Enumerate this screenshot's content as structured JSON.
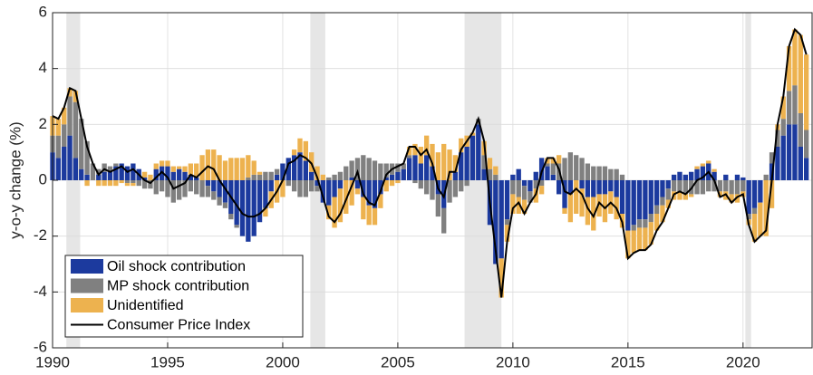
{
  "chart_data": {
    "type": "bar",
    "stacked": true,
    "ylabel": "y-o-y change (%)",
    "xlim": [
      1990,
      2023
    ],
    "xticks": [
      1990,
      1995,
      2000,
      2005,
      2010,
      2015,
      2020
    ],
    "ylim": [
      -6,
      6
    ],
    "yticks": [
      -6,
      -4,
      -2,
      0,
      2,
      4,
      6
    ],
    "grid": true,
    "legend": "lower left",
    "shaded_periods": [
      [
        1990.6,
        1991.2
      ],
      [
        2001.2,
        2001.85
      ],
      [
        2007.9,
        2009.5
      ],
      [
        2020.1,
        2020.35
      ]
    ],
    "shade_color": "#e6e6e6",
    "x": [
      1990,
      1990.25,
      1990.5,
      1990.75,
      1991,
      1991.25,
      1991.5,
      1991.75,
      1992,
      1992.25,
      1992.5,
      1992.75,
      1993,
      1993.25,
      1993.5,
      1993.75,
      1994,
      1994.25,
      1994.5,
      1994.75,
      1995,
      1995.25,
      1995.5,
      1995.75,
      1996,
      1996.25,
      1996.5,
      1996.75,
      1997,
      1997.25,
      1997.5,
      1997.75,
      1998,
      1998.25,
      1998.5,
      1998.75,
      1999,
      1999.25,
      1999.5,
      1999.75,
      2000,
      2000.25,
      2000.5,
      2000.75,
      2001,
      2001.25,
      2001.5,
      2001.75,
      2002,
      2002.25,
      2002.5,
      2002.75,
      2003,
      2003.25,
      2003.5,
      2003.75,
      2004,
      2004.25,
      2004.5,
      2004.75,
      2005,
      2005.25,
      2005.5,
      2005.75,
      2006,
      2006.25,
      2006.5,
      2006.75,
      2007,
      2007.25,
      2007.5,
      2007.75,
      2008,
      2008.25,
      2008.5,
      2008.75,
      2009,
      2009.25,
      2009.5,
      2009.75,
      2010,
      2010.25,
      2010.5,
      2010.75,
      2011,
      2011.25,
      2011.5,
      2011.75,
      2012,
      2012.25,
      2012.5,
      2012.75,
      2013,
      2013.25,
      2013.5,
      2013.75,
      2014,
      2014.25,
      2014.5,
      2014.75,
      2015,
      2015.25,
      2015.5,
      2015.75,
      2016,
      2016.25,
      2016.5,
      2016.75,
      2017,
      2017.25,
      2017.5,
      2017.75,
      2018,
      2018.25,
      2018.5,
      2018.75,
      2019,
      2019.25,
      2019.5,
      2019.75,
      2020,
      2020.25,
      2020.5,
      2020.75,
      2021,
      2021.25,
      2021.5,
      2021.75,
      2022,
      2022.25,
      2022.5,
      2022.75
    ],
    "series": [
      {
        "name": "Oil shock contribution",
        "color": "#1c3a9e",
        "type": "bar",
        "values": [
          1.0,
          0.8,
          1.2,
          1.6,
          0.8,
          0.4,
          0.2,
          0.0,
          0.2,
          0.3,
          0.3,
          0.5,
          0.6,
          0.5,
          0.6,
          0.4,
          0.1,
          0.0,
          0.4,
          0.5,
          0.5,
          0.3,
          0.4,
          0.3,
          0.2,
          0.1,
          0.0,
          -0.2,
          -0.4,
          -0.6,
          -0.8,
          -1.2,
          -1.6,
          -2.0,
          -2.2,
          -2.0,
          -1.5,
          -1.0,
          -0.4,
          0.2,
          0.6,
          0.8,
          0.9,
          1.0,
          0.7,
          0.3,
          -0.2,
          -0.8,
          -0.9,
          -0.6,
          -0.3,
          0.0,
          0.1,
          -0.3,
          -0.6,
          -0.9,
          -1.0,
          -0.5,
          0.1,
          0.2,
          0.3,
          0.4,
          0.8,
          0.9,
          0.6,
          0.9,
          0.5,
          -0.5,
          -1.0,
          0.0,
          0.3,
          1.0,
          1.2,
          1.6,
          2.0,
          0.4,
          -1.6,
          -3.0,
          -2.8,
          -1.4,
          0.2,
          0.4,
          -0.2,
          -0.4,
          0.3,
          0.8,
          0.5,
          0.2,
          -0.5,
          -1.0,
          -0.5,
          0.0,
          -0.3,
          -0.6,
          -0.6,
          -0.5,
          -0.5,
          -0.4,
          -0.6,
          -1.2,
          -1.8,
          -1.6,
          -1.4,
          -1.4,
          -1.2,
          -0.9,
          -0.6,
          -0.3,
          0.2,
          0.3,
          0.2,
          0.3,
          0.4,
          0.5,
          0.6,
          0.3,
          0.0,
          0.2,
          0.0,
          0.2,
          0.1,
          -1.2,
          -1.0,
          -0.8,
          0.0,
          0.6,
          1.2,
          1.6,
          2.0,
          2.0,
          1.2,
          0.8
        ]
      },
      {
        "name": "MP shock contribution",
        "color": "#808080",
        "type": "bar",
        "values": [
          0.6,
          0.8,
          0.8,
          1.4,
          2.0,
          1.8,
          1.2,
          0.6,
          0.2,
          0.3,
          0.2,
          0.1,
          0.0,
          -0.1,
          -0.1,
          -0.2,
          -0.3,
          -0.3,
          -0.5,
          -0.4,
          -0.6,
          -0.8,
          -0.7,
          -0.6,
          -0.4,
          -0.5,
          -0.6,
          -0.4,
          -0.3,
          -0.3,
          -0.2,
          -0.2,
          -0.1,
          0.0,
          0.1,
          0.2,
          0.2,
          0.3,
          0.3,
          0.2,
          0.0,
          -0.2,
          -0.4,
          -0.6,
          -0.6,
          -0.4,
          -0.2,
          0.0,
          0.1,
          0.2,
          0.3,
          0.5,
          0.6,
          0.8,
          0.9,
          0.8,
          0.7,
          0.6,
          0.5,
          0.4,
          0.3,
          0.2,
          0.1,
          -0.1,
          -0.3,
          -0.5,
          -0.7,
          -0.8,
          -0.9,
          -0.8,
          -0.6,
          -0.4,
          -0.2,
          0.0,
          0.2,
          0.5,
          0.4,
          0.2,
          0.0,
          -0.2,
          -0.5,
          -0.6,
          -0.5,
          -0.4,
          -0.3,
          -0.2,
          0.1,
          0.4,
          0.6,
          0.8,
          1.0,
          0.9,
          0.8,
          0.6,
          0.5,
          0.5,
          0.5,
          0.4,
          0.4,
          0.2,
          0.0,
          -0.2,
          -0.3,
          -0.3,
          -0.3,
          -0.3,
          -0.3,
          -0.4,
          -0.4,
          -0.4,
          -0.5,
          -0.5,
          -0.5,
          -0.5,
          -0.4,
          -0.4,
          -0.4,
          -0.4,
          -0.5,
          -0.5,
          -0.4,
          -0.2,
          -0.2,
          0.0,
          0.2,
          0.4,
          0.6,
          0.6,
          1.2,
          1.4,
          1.2,
          1.0
        ]
      },
      {
        "name": "Unidentified",
        "color": "#edb24f",
        "type": "bar",
        "values": [
          0.7,
          0.6,
          0.6,
          0.3,
          0.4,
          0.0,
          -0.2,
          0.0,
          -0.2,
          -0.2,
          -0.2,
          -0.2,
          -0.1,
          -0.1,
          -0.1,
          0.0,
          0.2,
          0.2,
          0.2,
          0.2,
          0.2,
          0.2,
          0.1,
          0.2,
          0.4,
          0.5,
          0.9,
          1.1,
          1.1,
          0.9,
          0.7,
          0.8,
          0.8,
          0.8,
          0.8,
          0.5,
          0.1,
          -0.3,
          -0.6,
          -0.8,
          -0.6,
          0.0,
          0.2,
          0.5,
          0.7,
          0.7,
          0.5,
          0.2,
          -0.5,
          -1.1,
          -1.2,
          -1.2,
          -0.9,
          -0.2,
          -0.8,
          -0.7,
          -0.6,
          -0.5,
          -0.4,
          -0.2,
          -0.1,
          0.0,
          0.3,
          0.4,
          0.6,
          0.7,
          0.8,
          1.0,
          1.3,
          1.1,
          0.6,
          0.5,
          0.4,
          0.1,
          0.0,
          0.5,
          0.4,
          0.3,
          -1.4,
          -0.6,
          -0.7,
          -0.6,
          -0.5,
          0.0,
          -0.5,
          -0.3,
          0.2,
          0.2,
          0.3,
          -0.2,
          -1.0,
          -1.2,
          -1.0,
          -1.0,
          -1.2,
          -0.8,
          -1.0,
          -0.8,
          -0.8,
          -0.5,
          -1.0,
          -0.8,
          -0.8,
          -0.8,
          -0.8,
          -0.6,
          -0.6,
          -0.3,
          -0.3,
          -0.3,
          -0.2,
          -0.1,
          0.1,
          0.1,
          0.1,
          0.1,
          -0.2,
          -0.3,
          -0.3,
          -0.3,
          -0.2,
          -0.2,
          -1.0,
          -1.2,
          -2.0,
          -1.0,
          0.2,
          0.8,
          1.6,
          2.0,
          2.8,
          2.7
        ]
      },
      {
        "name": "Consumer Price Index",
        "color": "#000000",
        "type": "line",
        "values": [
          2.3,
          2.2,
          2.6,
          3.3,
          3.2,
          2.2,
          1.2,
          0.6,
          0.2,
          0.4,
          0.3,
          0.4,
          0.5,
          0.3,
          0.4,
          0.2,
          0.0,
          -0.1,
          0.1,
          0.3,
          0.1,
          -0.3,
          -0.2,
          -0.1,
          0.2,
          0.1,
          0.3,
          0.5,
          0.4,
          0.0,
          -0.3,
          -0.6,
          -0.9,
          -1.2,
          -1.3,
          -1.3,
          -1.2,
          -1.0,
          -0.7,
          -0.4,
          0.0,
          0.6,
          0.7,
          0.9,
          0.8,
          0.6,
          0.1,
          -0.6,
          -1.3,
          -1.5,
          -1.2,
          -0.7,
          -0.2,
          0.3,
          -0.5,
          -0.8,
          -0.9,
          -0.4,
          0.2,
          0.4,
          0.5,
          0.6,
          1.2,
          1.2,
          0.9,
          1.1,
          0.6,
          -0.3,
          -0.6,
          0.3,
          0.3,
          1.1,
          1.4,
          1.7,
          2.2,
          1.4,
          -0.8,
          -2.5,
          -4.2,
          -2.2,
          -1.0,
          -0.8,
          -1.2,
          -0.8,
          -0.5,
          0.3,
          0.8,
          0.8,
          0.4,
          -0.4,
          -0.5,
          -0.3,
          -0.5,
          -1.0,
          -1.3,
          -0.8,
          -1.0,
          -0.8,
          -1.0,
          -1.5,
          -2.8,
          -2.6,
          -2.5,
          -2.5,
          -2.3,
          -1.8,
          -1.5,
          -1.0,
          -0.5,
          -0.4,
          -0.5,
          -0.3,
          0.0,
          0.1,
          0.3,
          0.0,
          -0.6,
          -0.5,
          -0.8,
          -0.6,
          -0.5,
          -1.6,
          -2.2,
          -2.0,
          -1.8,
          0.0,
          2.0,
          3.0,
          4.8,
          5.4,
          5.2,
          4.5
        ]
      }
    ]
  }
}
